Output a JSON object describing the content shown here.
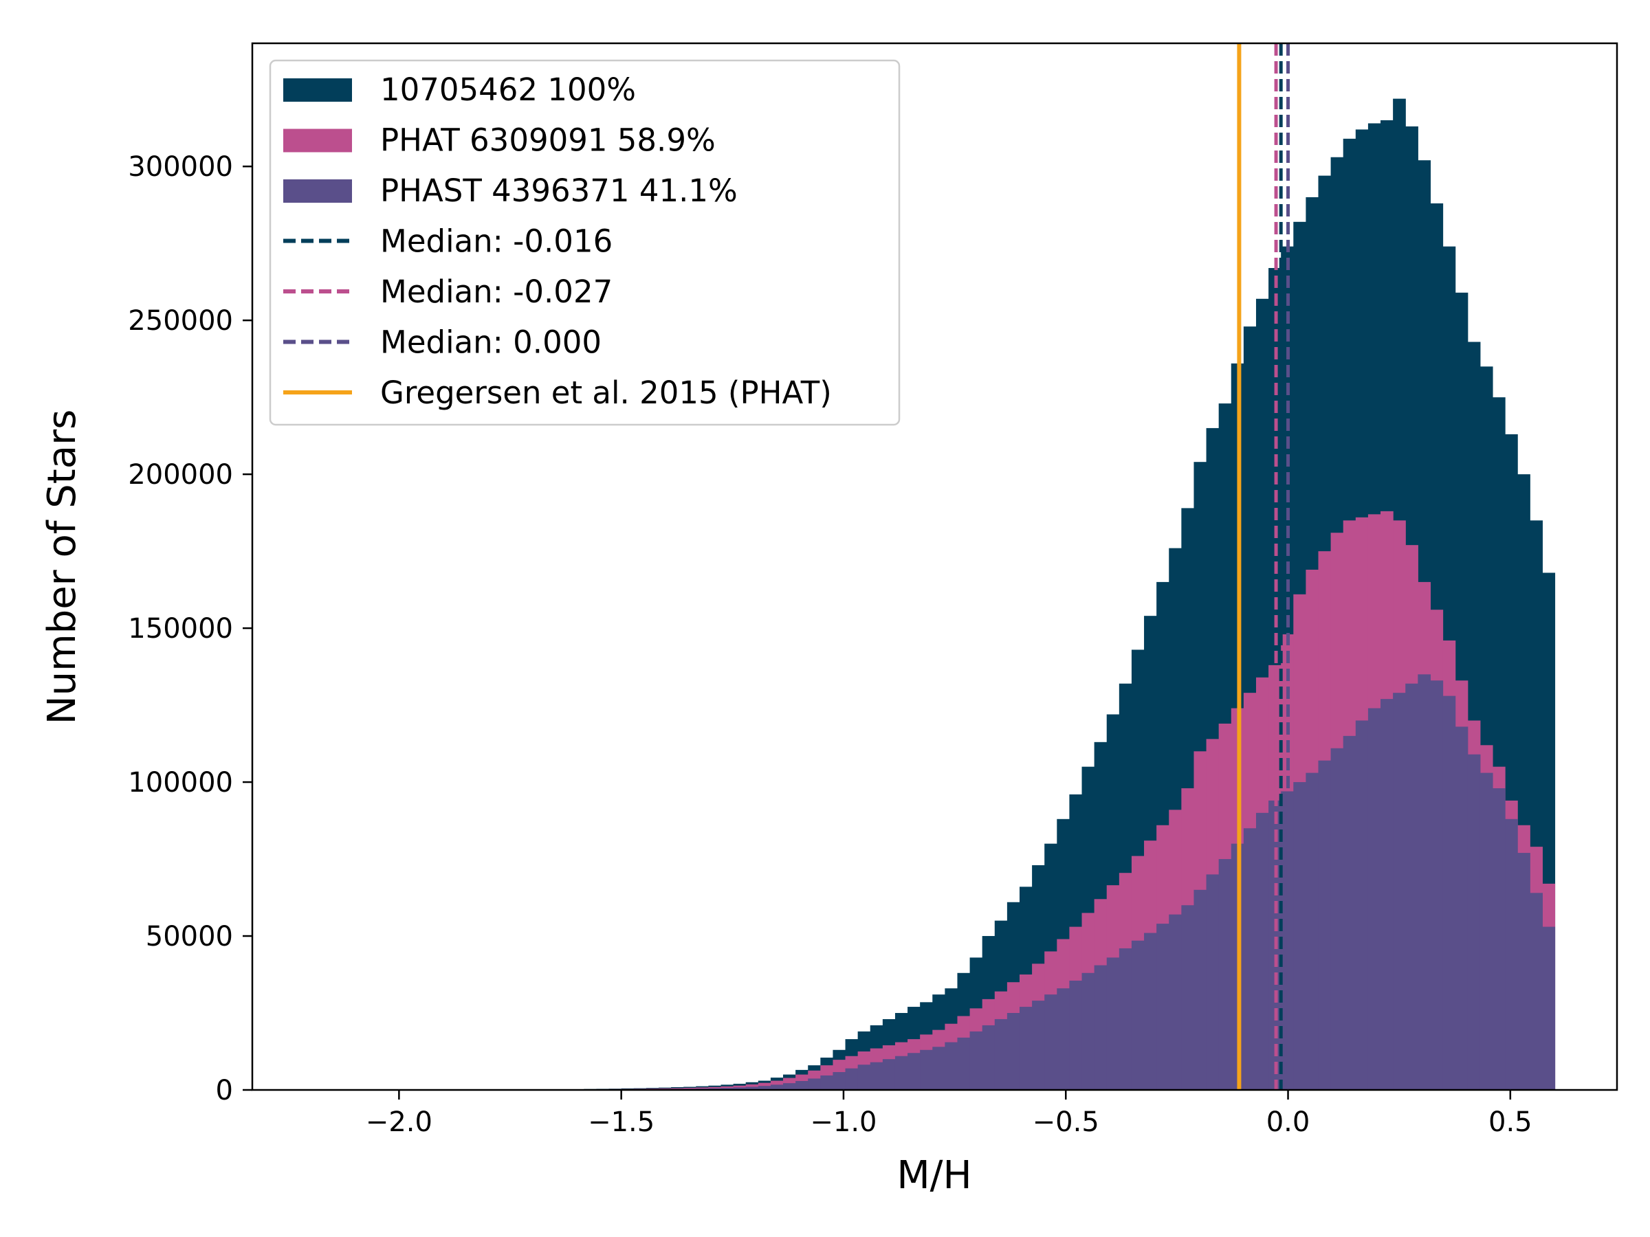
{
  "chart_data": {
    "type": "bar",
    "subtype": "histogram",
    "title": "",
    "xlabel": "M/H",
    "ylabel": "Number of Stars",
    "xlim": [
      -2.33,
      0.74
    ],
    "ylim": [
      0,
      340000
    ],
    "x_ticks": [
      -2.0,
      -1.5,
      -1.0,
      -0.5,
      0.0,
      0.5
    ],
    "x_tick_labels": [
      "−2.0",
      "−1.5",
      "−1.0",
      "−0.5",
      "0.0",
      "0.5"
    ],
    "y_ticks": [
      0,
      50000,
      100000,
      150000,
      200000,
      250000,
      300000
    ],
    "y_tick_labels": [
      "0",
      "50000",
      "100000",
      "150000",
      "200000",
      "250000",
      "300000"
    ],
    "grid": false,
    "legend_position": "upper-left",
    "bin_edges": {
      "start": -2.2,
      "end": 0.6,
      "count": 100
    },
    "series": [
      {
        "name": "10705462 100%",
        "color": "#023e5a",
        "values": [
          0,
          0,
          0,
          0,
          0,
          0,
          0,
          0,
          0,
          0,
          0,
          0,
          0,
          0,
          0,
          0,
          0,
          0,
          0,
          0,
          0,
          0,
          300,
          350,
          400,
          500,
          550,
          650,
          750,
          900,
          1000,
          1200,
          1400,
          1700,
          2000,
          2500,
          3000,
          4000,
          5000,
          6500,
          8000,
          10500,
          13000,
          16500,
          19000,
          21000,
          23000,
          25000,
          27000,
          28500,
          31000,
          33000,
          38000,
          43000,
          50000,
          55000,
          61000,
          66000,
          73000,
          80000,
          88000,
          96000,
          105000,
          113000,
          122000,
          132000,
          143000,
          154000,
          165000,
          176000,
          189000,
          204000,
          215000,
          223000,
          236000,
          248000,
          257000,
          267000,
          274000,
          282000,
          290000,
          297000,
          303000,
          309000,
          312000,
          314000,
          315000,
          322000,
          313000,
          302000,
          288000,
          274000,
          259000,
          243000,
          235000,
          225000,
          213000,
          200000,
          185000,
          168000
        ]
      },
      {
        "name": "PHAT 6309091 58.9%",
        "color": "#bc4f8e",
        "values": [
          0,
          0,
          0,
          0,
          0,
          0,
          0,
          0,
          0,
          0,
          0,
          0,
          0,
          0,
          0,
          0,
          0,
          0,
          0,
          0,
          0,
          0,
          200,
          230,
          270,
          320,
          370,
          430,
          500,
          580,
          680,
          800,
          950,
          1150,
          1400,
          1800,
          2300,
          3000,
          3900,
          5000,
          6300,
          8000,
          9800,
          11000,
          12500,
          13500,
          14500,
          15500,
          16500,
          18000,
          19500,
          21500,
          24000,
          26500,
          29500,
          32000,
          35000,
          37500,
          41000,
          45000,
          49000,
          53000,
          57500,
          62000,
          66500,
          70500,
          76000,
          81000,
          86000,
          91000,
          98000,
          110000,
          114000,
          119000,
          124000,
          129000,
          134000,
          138000,
          148000,
          161000,
          169000,
          175000,
          181000,
          185000,
          186000,
          187000,
          188000,
          185000,
          177000,
          165000,
          156000,
          146000,
          133000,
          120000,
          112000,
          105000,
          94000,
          86000,
          79000,
          67000
        ]
      },
      {
        "name": "PHAST 4396371 41.1%",
        "color": "#5a4f8a",
        "values": [
          0,
          0,
          0,
          0,
          0,
          0,
          0,
          0,
          0,
          0,
          0,
          0,
          0,
          0,
          0,
          0,
          0,
          0,
          0,
          0,
          0,
          0,
          100,
          120,
          140,
          170,
          200,
          230,
          270,
          320,
          380,
          450,
          540,
          650,
          800,
          1000,
          1300,
          1700,
          2200,
          2900,
          3700,
          4700,
          5800,
          7000,
          8200,
          9000,
          10000,
          11000,
          12000,
          13000,
          14000,
          15500,
          17000,
          19000,
          21000,
          23000,
          25000,
          27000,
          29000,
          31000,
          33000,
          35500,
          38000,
          40500,
          43000,
          46000,
          48500,
          51000,
          54000,
          57000,
          60000,
          65000,
          70000,
          75000,
          80000,
          85000,
          90000,
          94000,
          97000,
          100000,
          103000,
          107000,
          111000,
          115000,
          120000,
          124000,
          127000,
          129000,
          132000,
          135000,
          133000,
          128000,
          118000,
          109000,
          103000,
          98000,
          88000,
          77000,
          64000,
          53000
        ]
      }
    ],
    "reference_lines": [
      {
        "name": "Median: -0.016",
        "x": -0.016,
        "color": "#023e5a",
        "style": "dashed"
      },
      {
        "name": "Median: -0.027",
        "x": -0.027,
        "color": "#bc4f8e",
        "style": "dashed"
      },
      {
        "name": "Median: 0.000",
        "x": 0.0,
        "color": "#5a4f8a",
        "style": "dashed"
      },
      {
        "name": "Gregersen et al. 2015 (PHAT)",
        "x": -0.11,
        "color": "#f5a31a",
        "style": "solid"
      }
    ]
  }
}
